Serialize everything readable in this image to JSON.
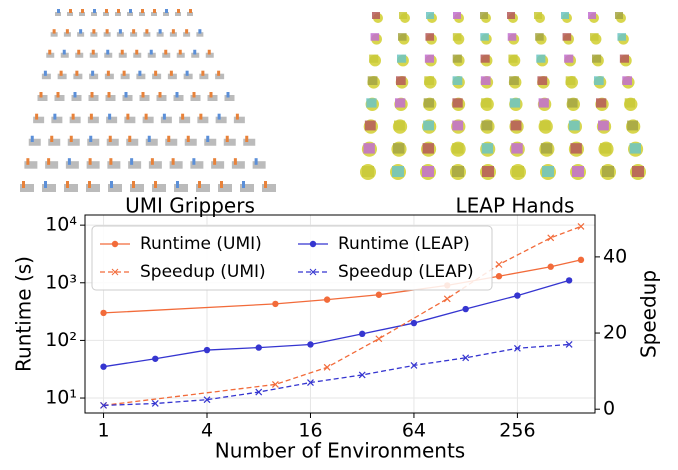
{
  "panels": {
    "left_label": "UMI Grippers",
    "right_label": "LEAP Hands"
  },
  "chart_data": {
    "type": "line",
    "xlabel": "Number of Environments",
    "ylabel": "Runtime (s)",
    "y2label": "Speedup",
    "xscale": "log",
    "yscale": "log",
    "grid": true,
    "legend": "upper left",
    "xlim": [
      0.78,
      724
    ],
    "xticks": [
      1,
      4,
      16,
      64,
      256
    ],
    "ylim": [
      5.5,
      15000
    ],
    "yticks": [
      {
        "value": 10,
        "label": "10¹"
      },
      {
        "value": 100,
        "label": "10²"
      },
      {
        "value": 1000,
        "label": "10³"
      },
      {
        "value": 10000,
        "label": "10⁴"
      }
    ],
    "y2lim": [
      -1,
      51
    ],
    "y2ticks": [
      0,
      20,
      40
    ],
    "series": [
      {
        "name": "Runtime (UMI)",
        "color": "#f26b3a",
        "linestyle": "solid",
        "marker": "o",
        "x": [
          1,
          10,
          20,
          40,
          100,
          200,
          400,
          600
        ],
        "values": [
          300,
          430,
          510,
          620,
          900,
          1300,
          1900,
          2500
        ]
      },
      {
        "name": "Runtime (LEAP)",
        "color": "#3535d0",
        "linestyle": "solid",
        "marker": "o",
        "x": [
          1,
          2,
          4,
          8,
          16,
          32,
          64,
          128,
          256,
          512
        ],
        "values": [
          35,
          48,
          68,
          75,
          85,
          130,
          200,
          350,
          600,
          1100
        ]
      },
      {
        "name": "Speedup (UMI)",
        "color": "#f26b3a",
        "linestyle": "dashed",
        "marker": "x",
        "axis": "y2",
        "x": [
          1,
          10,
          20,
          40,
          100,
          200,
          400,
          600
        ],
        "values": [
          1,
          6.5,
          11,
          18.5,
          29,
          38,
          45,
          48
        ]
      },
      {
        "name": "Speedup (LEAP)",
        "color": "#3535d0",
        "linestyle": "dashed",
        "marker": "x",
        "axis": "y2",
        "x": [
          1,
          2,
          4,
          8,
          16,
          32,
          64,
          128,
          256,
          512
        ],
        "values": [
          1,
          1.5,
          2.5,
          4.5,
          7,
          9,
          11.5,
          13.5,
          16,
          17
        ]
      }
    ]
  }
}
